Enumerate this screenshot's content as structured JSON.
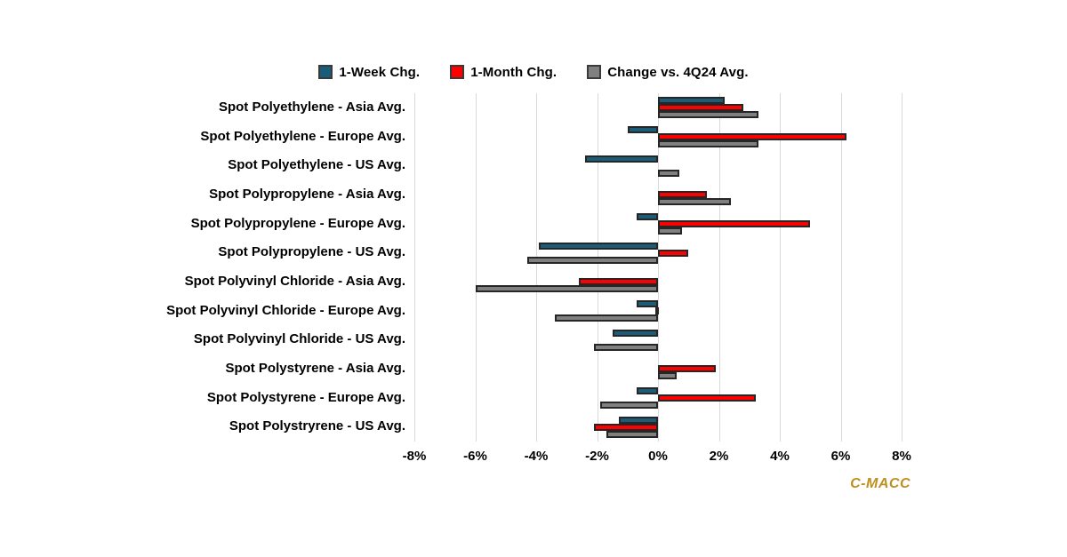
{
  "legend": {
    "items": [
      {
        "label": "1-Week Chg.",
        "color": "#1b5c78",
        "marker": "square-icon"
      },
      {
        "label": "1-Month Chg.",
        "color": "#ff0000",
        "marker": "square-icon"
      },
      {
        "label": "Change vs. 4Q24 Avg.",
        "color": "#808080",
        "marker": "square-icon"
      }
    ]
  },
  "watermark": "C-MACC",
  "colors": {
    "week_blue": "#1b5c78",
    "month_red": "#ff0000",
    "q4_gray": "#808080",
    "bar_border": "#262626",
    "gridline": "#d9d9d9",
    "watermark_gold": "#bf8f1f",
    "background": "#ffffff",
    "text": "#000000"
  },
  "chart_data": {
    "type": "bar",
    "orientation": "horizontal",
    "title": "",
    "xlabel": "",
    "ylabel": "",
    "xlim": [
      -8,
      8
    ],
    "grid": "vertical",
    "legend_position": "top",
    "x_tick_labels": [
      "-8%",
      "-6%",
      "-4%",
      "-2%",
      "0%",
      "2%",
      "4%",
      "6%",
      "8%"
    ],
    "x_tick_values": [
      -8,
      -6,
      -4,
      -2,
      0,
      2,
      4,
      6,
      8
    ],
    "categories": [
      "Spot Polyethylene - Asia Avg.",
      "Spot Polyethylene - Europe Avg.",
      "Spot Polyethylene - US Avg.",
      "Spot Polypropylene - Asia Avg.",
      "Spot Polypropylene - Europe Avg.",
      "Spot Polypropylene - US Avg.",
      "Spot Polyvinyl Chloride - Asia Avg.",
      "Spot Polyvinyl Chloride - Europe Avg.",
      "Spot Polyvinyl Chloride - US Avg.",
      "Spot Polystyrene - Asia Avg.",
      "Spot Polystyrene - Europe Avg.",
      "Spot Polystryrene - US Avg."
    ],
    "series": [
      {
        "name": "1-Week Chg.",
        "color": "#1b5c78",
        "values": [
          2.2,
          -1.0,
          -2.4,
          0.0,
          -0.7,
          -3.9,
          0.0,
          -0.7,
          -1.5,
          0.0,
          -0.7,
          -1.3
        ]
      },
      {
        "name": "1-Month Chg.",
        "color": "#ff0000",
        "values": [
          2.8,
          6.2,
          0.0,
          1.6,
          5.0,
          1.0,
          -2.6,
          -0.1,
          0.0,
          1.9,
          3.2,
          -2.1
        ]
      },
      {
        "name": "Change vs. 4Q24 Avg.",
        "color": "#808080",
        "values": [
          3.3,
          3.3,
          0.7,
          2.4,
          0.8,
          -4.3,
          -6.0,
          -3.4,
          -2.1,
          0.6,
          -1.9,
          -1.7
        ]
      }
    ]
  }
}
